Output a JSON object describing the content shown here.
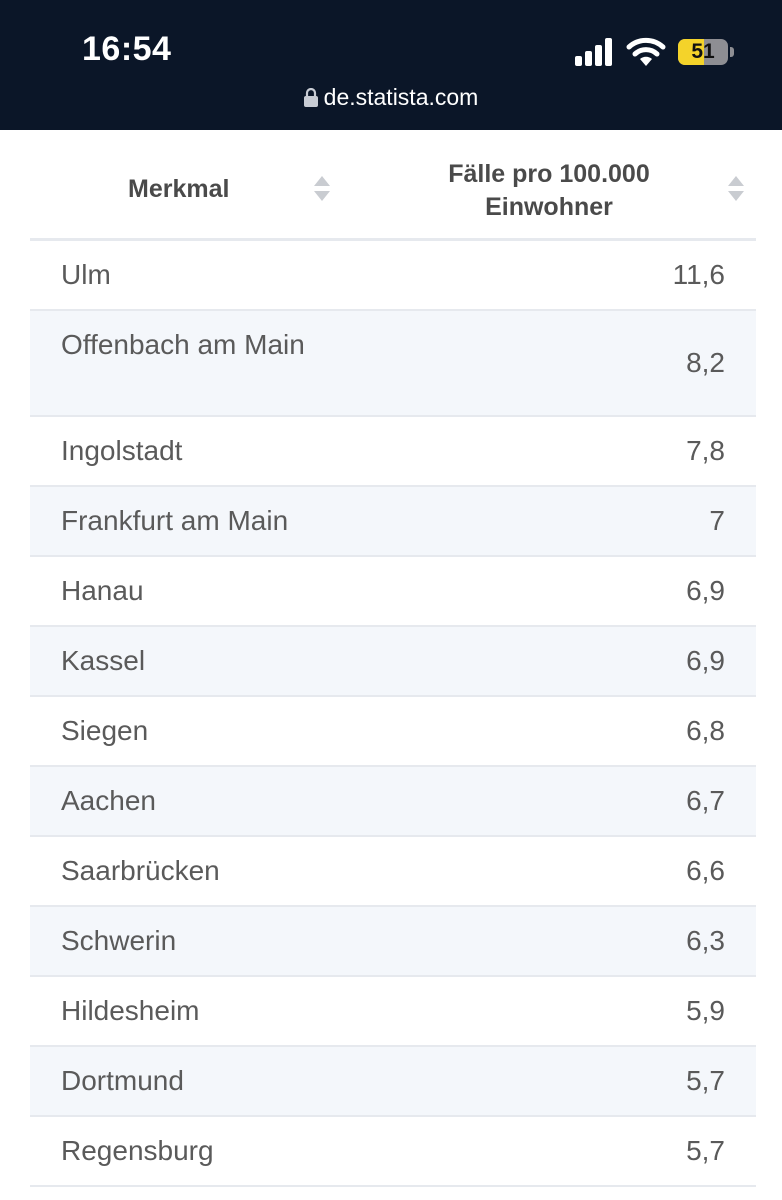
{
  "status_bar": {
    "time": "16:54",
    "battery_level": "51",
    "url": "de.statista.com"
  },
  "table": {
    "headers": [
      "Merkmal",
      "Fälle pro 100.000 Einwohner"
    ],
    "rows": [
      {
        "city": "Ulm",
        "value": "11,6"
      },
      {
        "city": "Offenbach am Main",
        "value": "8,2"
      },
      {
        "city": "Ingolstadt",
        "value": "7,8"
      },
      {
        "city": "Frankfurt am Main",
        "value": "7"
      },
      {
        "city": "Hanau",
        "value": "6,9"
      },
      {
        "city": "Kassel",
        "value": "6,9"
      },
      {
        "city": "Siegen",
        "value": "6,8"
      },
      {
        "city": "Aachen",
        "value": "6,7"
      },
      {
        "city": "Saarbrücken",
        "value": "6,6"
      },
      {
        "city": "Schwerin",
        "value": "6,3"
      },
      {
        "city": "Hildesheim",
        "value": "5,9"
      },
      {
        "city": "Dortmund",
        "value": "5,7"
      },
      {
        "city": "Regensburg",
        "value": "5,7"
      }
    ]
  },
  "colors": {
    "status_bar_bg": "#0b1628",
    "row_alt_bg": "#f4f7fb",
    "battery_fill": "#f4d32a"
  }
}
